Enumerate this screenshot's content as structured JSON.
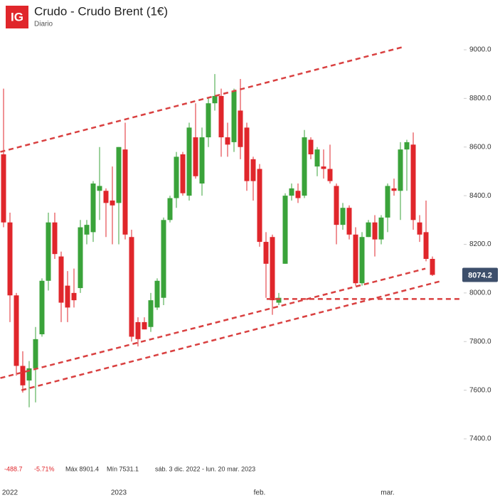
{
  "chart_data": {
    "type": "candlestick",
    "logo": "IG",
    "title": "Crudo - Crudo Brent (1€)",
    "subtitle": "Diario",
    "up_color": "#3aa33a",
    "down_color": "#e0262b",
    "line_color": "#d94040",
    "categories": [
      null,
      "2022",
      null,
      null,
      null,
      null,
      null,
      null,
      null,
      null,
      null,
      null,
      null,
      null,
      null,
      null,
      null,
      null,
      "2023",
      null,
      null,
      null,
      null,
      null,
      null,
      null,
      null,
      null,
      null,
      null,
      null,
      null,
      null,
      null,
      null,
      null,
      null,
      null,
      null,
      null,
      "feb.",
      null,
      null,
      null,
      null,
      null,
      null,
      null,
      null,
      null,
      null,
      null,
      null,
      null,
      null,
      null,
      null,
      null,
      null,
      null,
      "mar.",
      null,
      null,
      null,
      null,
      null,
      null,
      null
    ],
    "open": [
      8570,
      8290,
      7990,
      7700,
      7640,
      7690,
      7830,
      8050,
      8290,
      8150,
      8030,
      8000,
      8020,
      8240,
      8250,
      8420,
      8420,
      8380,
      8370,
      8590,
      8230,
      7880,
      7880,
      7860,
      7940,
      7980,
      8300,
      8390,
      8570,
      8400,
      8640,
      8450,
      8640,
      8780,
      8810,
      8640,
      8620,
      8750,
      8680,
      8550,
      8510,
      8210,
      8230,
      7960,
      8120,
      8400,
      8420,
      8400,
      8630,
      8520,
      8520,
      8510,
      8440,
      8280,
      8350,
      8240,
      8040,
      8230,
      8290,
      8220,
      8310,
      8430,
      8420,
      8590,
      8610,
      8290,
      8250,
      8140
    ],
    "high": [
      8840,
      8330,
      8000,
      7760,
      7720,
      7860,
      8060,
      8330,
      8330,
      8170,
      8090,
      8100,
      8300,
      8300,
      8460,
      8600,
      8430,
      8520,
      8600,
      8700,
      8260,
      7900,
      7900,
      8000,
      8060,
      8310,
      8400,
      8580,
      8580,
      8700,
      8780,
      8680,
      8800,
      8900,
      8840,
      8700,
      8840,
      8880,
      8700,
      8560,
      8530,
      8250,
      8240,
      8000,
      8410,
      8450,
      8450,
      8670,
      8640,
      8600,
      8590,
      8610,
      8450,
      8370,
      8360,
      8270,
      8250,
      8300,
      8320,
      8320,
      8450,
      8470,
      8620,
      8630,
      8660,
      8320,
      8380,
      8150
    ],
    "low": [
      8270,
      7880,
      7660,
      7590,
      7530,
      7550,
      7820,
      8010,
      8140,
      7880,
      7880,
      7940,
      8000,
      8200,
      8210,
      8300,
      8230,
      8200,
      8200,
      8220,
      7800,
      7780,
      7850,
      7840,
      7930,
      7950,
      8290,
      8350,
      8400,
      8380,
      8470,
      8400,
      8600,
      8750,
      8560,
      8560,
      8580,
      8550,
      8420,
      8380,
      8190,
      7980,
      7910,
      7950,
      8120,
      8380,
      8370,
      8390,
      8550,
      8480,
      8470,
      8450,
      8200,
      8260,
      8220,
      8030,
      8030,
      8230,
      8150,
      8200,
      8250,
      8400,
      8300,
      8420,
      8260,
      8210,
      8130,
      8070
    ],
    "close": [
      8290,
      7990,
      7700,
      7620,
      7690,
      7810,
      8050,
      8290,
      8160,
      7960,
      7940,
      7970,
      8270,
      8280,
      8450,
      8440,
      8370,
      8360,
      8600,
      8240,
      7820,
      7810,
      7850,
      7970,
      8050,
      8300,
      8390,
      8560,
      8410,
      8680,
      8480,
      8640,
      8780,
      8810,
      8640,
      8610,
      8830,
      8600,
      8460,
      8460,
      8210,
      8120,
      7970,
      7980,
      8400,
      8430,
      8390,
      8640,
      8570,
      8590,
      8510,
      8460,
      8280,
      8350,
      8240,
      8040,
      8230,
      8290,
      8220,
      8310,
      8440,
      8420,
      8590,
      8620,
      8300,
      8240,
      8140,
      8074.2
    ],
    "last_price": 8074.2,
    "trendlines": [
      [
        -0.5,
        8580,
        62.2,
        9010
      ],
      [
        -0.5,
        7650,
        65.9,
        8100
      ],
      [
        2.8,
        7600,
        68.5,
        8050
      ],
      [
        41.1,
        7975,
        71.5,
        7975
      ]
    ],
    "ylim": [
      7300,
      9200
    ],
    "yticks": [
      {
        "value": 7400,
        "label": "7400.0"
      },
      {
        "value": 7600,
        "label": "7600.0"
      },
      {
        "value": 7800,
        "label": "7800.0"
      },
      {
        "value": 8000,
        "label": "8000.0"
      },
      {
        "value": 8200,
        "label": "8200.0"
      },
      {
        "value": 8400,
        "label": "8400.0"
      },
      {
        "value": 8600,
        "label": "8600.0"
      },
      {
        "value": 8800,
        "label": "8800.0"
      },
      {
        "value": 9000,
        "label": "9000.0"
      }
    ],
    "change": -488.7,
    "change_pct": "-5.71%",
    "max_label": "Máx 8901.4",
    "min_label": "Mín 7531.1",
    "range_label": "sáb. 3 dic. 2022 - lun. 20 mar. 2023"
  }
}
